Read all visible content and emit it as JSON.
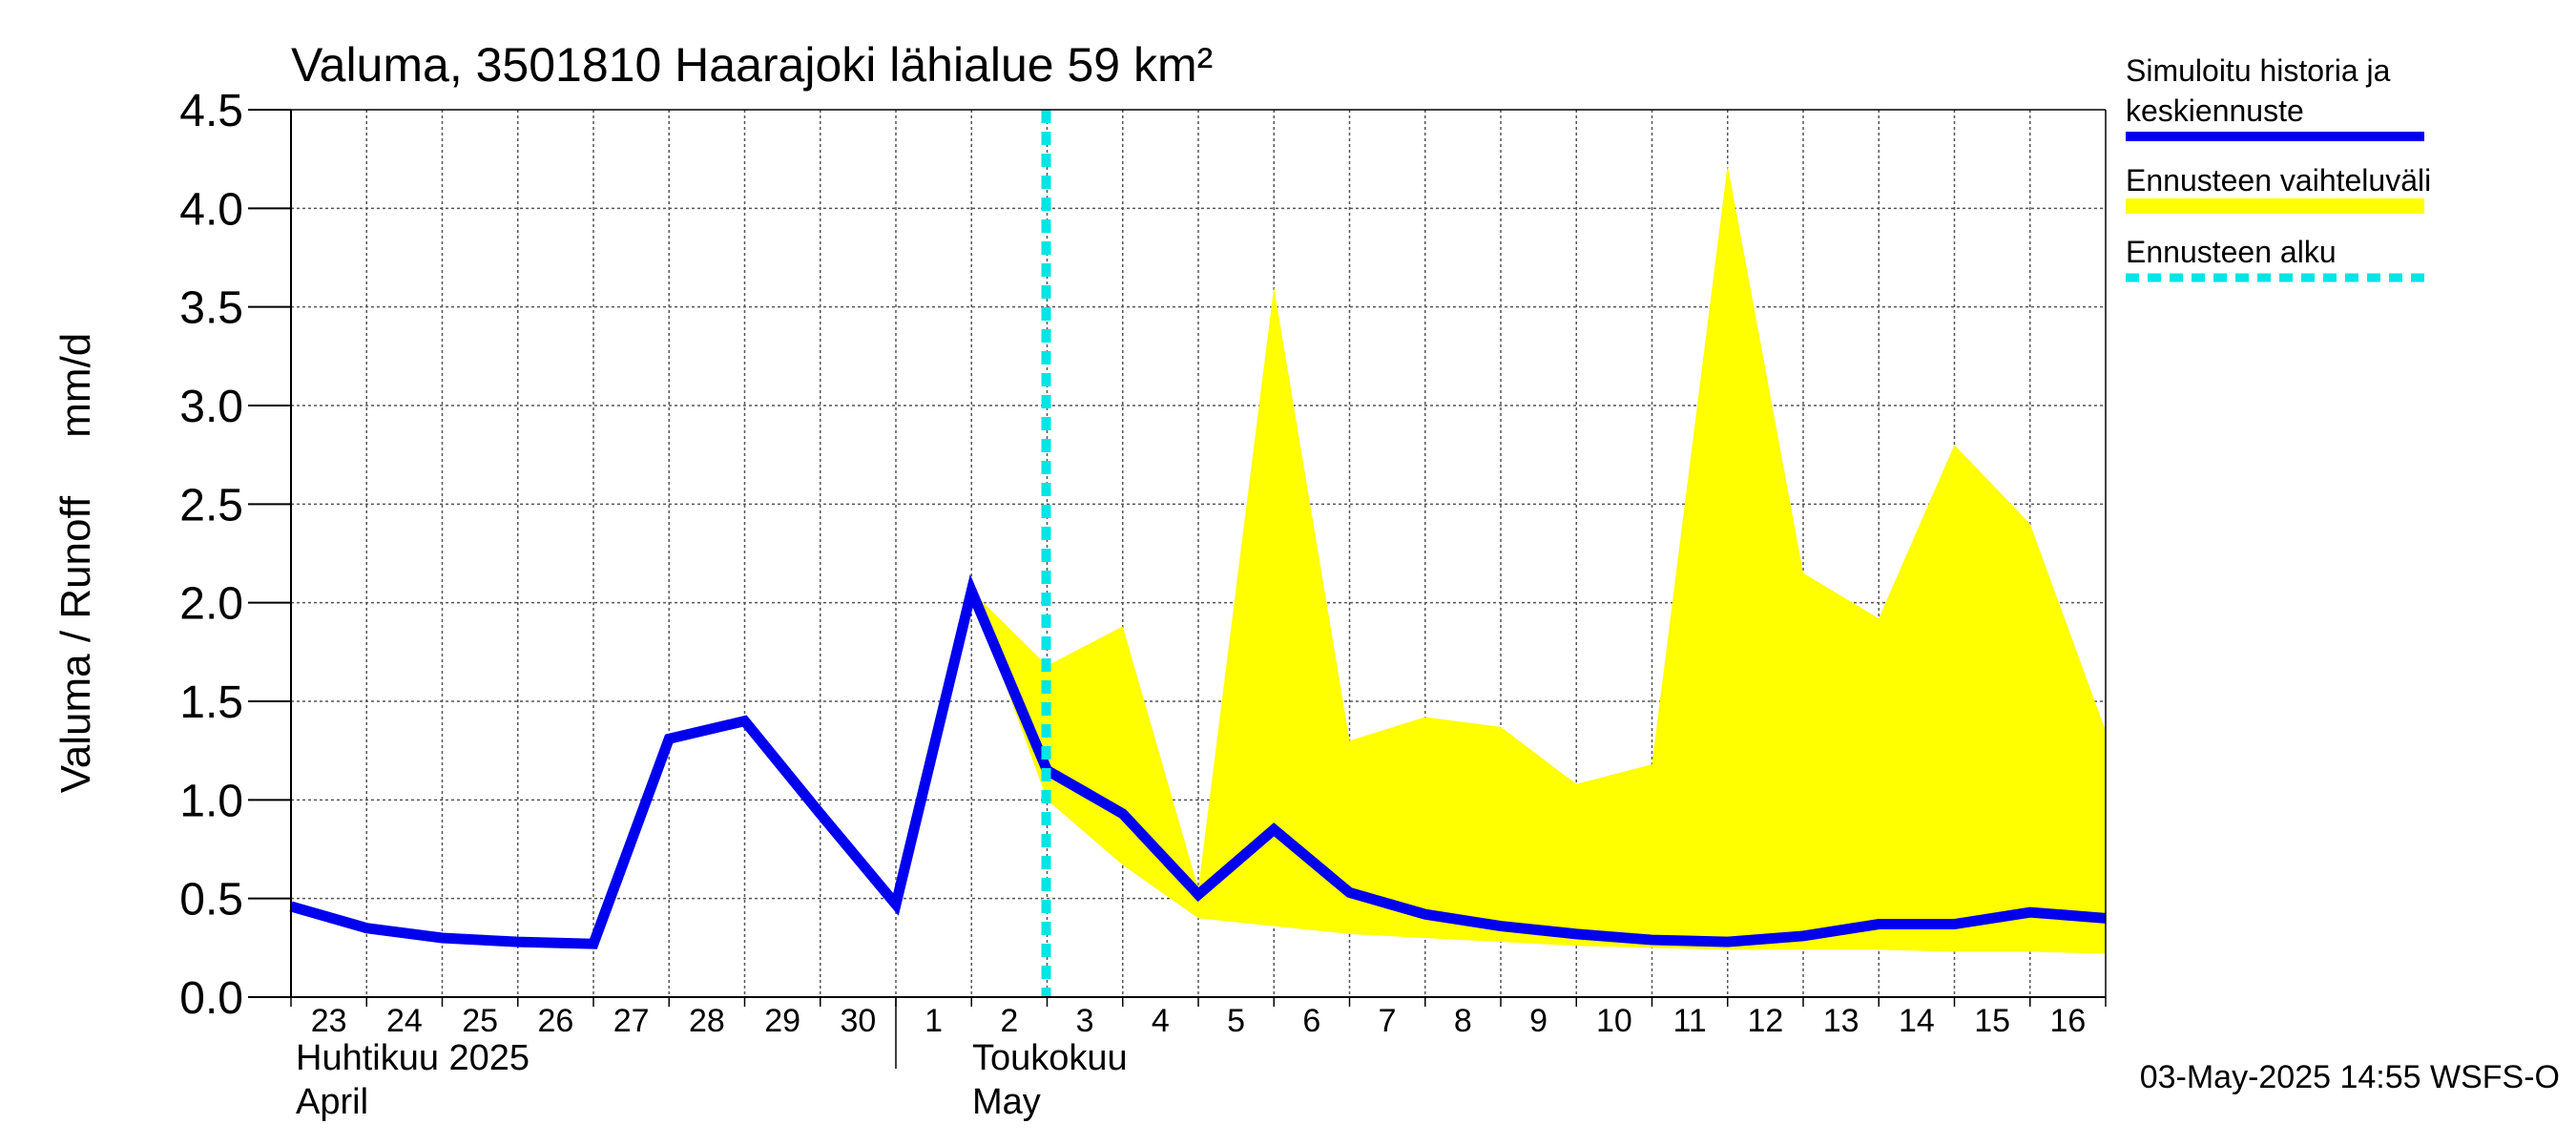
{
  "chart_data": {
    "type": "line",
    "title": "Valuma, 3501810 Haarajoki lähialue 59 km²",
    "ylabel": "Valuma / Runoff     mm/d",
    "ylim": [
      0,
      4.5
    ],
    "yticks": [
      "0.0",
      "0.5",
      "1.0",
      "1.5",
      "2.0",
      "2.5",
      "3.0",
      "3.5",
      "4.0",
      "4.5"
    ],
    "x_day_labels": [
      "23",
      "24",
      "25",
      "26",
      "27",
      "28",
      "29",
      "30",
      "1",
      "2",
      "3",
      "4",
      "5",
      "6",
      "7",
      "8",
      "9",
      "10",
      "11",
      "12",
      "13",
      "14",
      "15",
      "16"
    ],
    "month_labels": {
      "april_fi": "Huhtikuu  2025",
      "april_en": "April",
      "may_fi": "Toukokuu",
      "may_en": "May"
    },
    "series": [
      {
        "name": "Simuloitu historia ja keskiennuste",
        "color": "#0000ee",
        "values": [
          0.46,
          0.35,
          0.3,
          0.28,
          0.27,
          1.31,
          1.4,
          0.93,
          0.47,
          2.06,
          1.15,
          0.93,
          0.52,
          0.85,
          0.53,
          0.42,
          0.36,
          0.32,
          0.29,
          0.28,
          0.31,
          0.37,
          0.37,
          0.43,
          0.4
        ]
      },
      {
        "name": "Ennusteen vaihteluväli",
        "color": "#ffff00",
        "start_index": 9,
        "upper": [
          2.06,
          1.68,
          1.88,
          0.55,
          3.6,
          1.3,
          1.42,
          1.37,
          1.08,
          1.18,
          4.22,
          2.15,
          1.92,
          2.8,
          2.4,
          1.35
        ],
        "lower": [
          2.06,
          1.0,
          0.67,
          0.4,
          0.36,
          0.32,
          0.3,
          0.28,
          0.26,
          0.25,
          0.24,
          0.24,
          0.24,
          0.23,
          0.23,
          0.22
        ]
      }
    ],
    "forecast_start": {
      "name": "Ennusteen alku",
      "index": 10,
      "color": "#00e5e5"
    },
    "legend": {
      "position": "right",
      "items": [
        {
          "label_line1": "Simuloitu historia ja",
          "label_line2": "keskiennuste",
          "color": "#0000ee"
        },
        {
          "label_line1": "Ennusteen vaihteluväli",
          "label_line2": "",
          "color": "#ffff00"
        },
        {
          "label_line1": "Ennusteen alku",
          "label_line2": "",
          "color": "#00e5e5"
        }
      ]
    },
    "footer": "03-May-2025 14:55 WSFS-O"
  }
}
